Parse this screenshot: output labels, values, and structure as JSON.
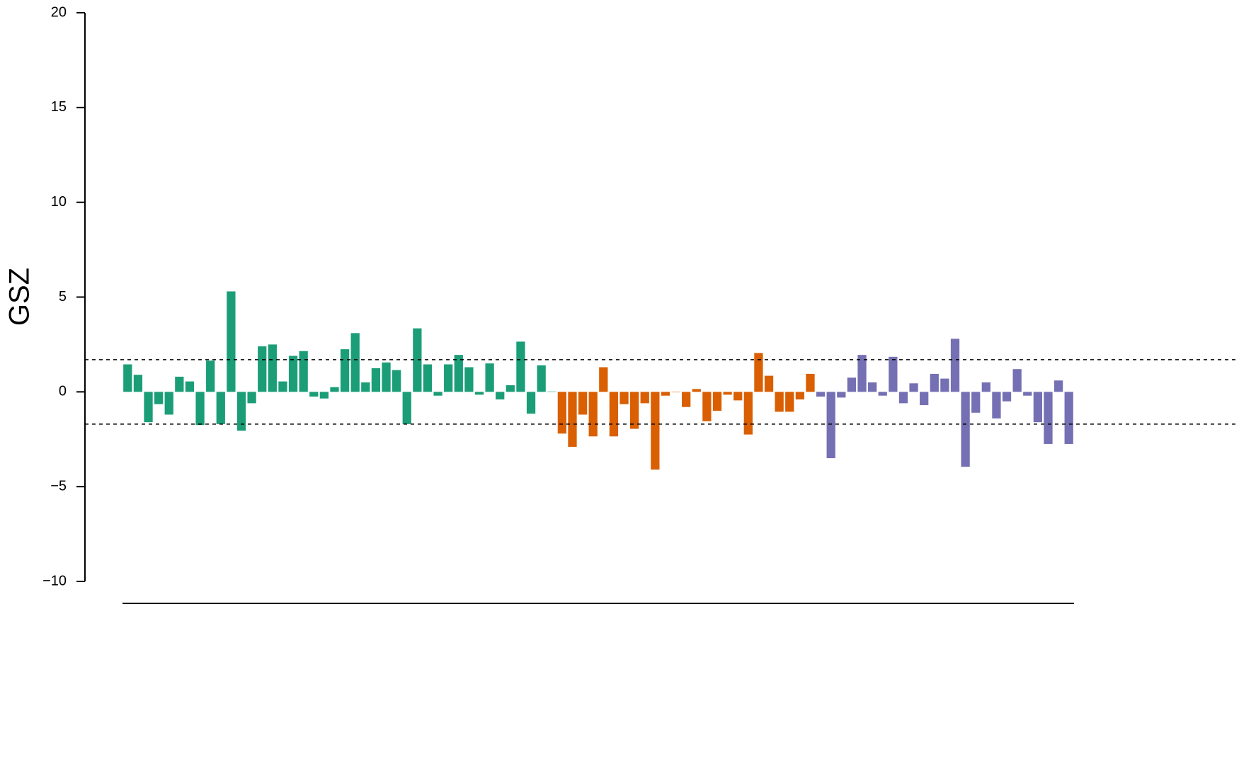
{
  "chart_data": {
    "type": "bar",
    "ylabel": "GSZ",
    "ylim": [
      -10,
      20
    ],
    "yticks": [
      {
        "value": -10,
        "label": "−10"
      },
      {
        "value": -5,
        "label": "−5"
      },
      0,
      5,
      10,
      15,
      20
    ],
    "reference_lines": [
      1.7,
      -1.7
    ],
    "series": [
      {
        "color": "#1b9e77",
        "values": [
          1.45,
          0.9,
          -1.6,
          -0.65,
          -1.2,
          0.8,
          0.55,
          -1.75,
          1.65,
          -1.7,
          5.3,
          -2.05,
          -0.6,
          2.4,
          2.5,
          0.55,
          1.9,
          2.15,
          -0.25,
          -0.35,
          0.25,
          2.25,
          3.1,
          0.5,
          1.25,
          1.55,
          1.15,
          -1.7,
          3.35,
          1.45,
          -0.2,
          1.45,
          1.95,
          1.3,
          -0.15,
          1.5,
          -0.4,
          0.35,
          2.65,
          -1.15,
          1.4,
          0.02
        ]
      },
      {
        "color": "#d95f02",
        "values": [
          -2.2,
          -2.9,
          -1.2,
          -2.35,
          1.3,
          -2.35,
          -0.65,
          -1.95,
          -0.6,
          -4.1,
          -0.2,
          -0.02,
          -0.8,
          0.15,
          -1.55,
          -1.0,
          -0.15,
          -0.45,
          -2.25,
          2.05,
          0.85,
          -1.05,
          -1.05,
          -0.4,
          0.95
        ]
      },
      {
        "color": "#7570b3",
        "values": [
          -0.25,
          -3.5,
          -0.3,
          0.75,
          1.95,
          0.5,
          -0.2,
          1.85,
          -0.6,
          0.45,
          -0.7,
          0.95,
          0.7,
          2.8,
          -3.95,
          -1.1,
          0.5,
          -1.4,
          -0.5,
          1.2,
          -0.2,
          -1.6,
          -2.75,
          0.6,
          -2.75
        ]
      }
    ]
  }
}
